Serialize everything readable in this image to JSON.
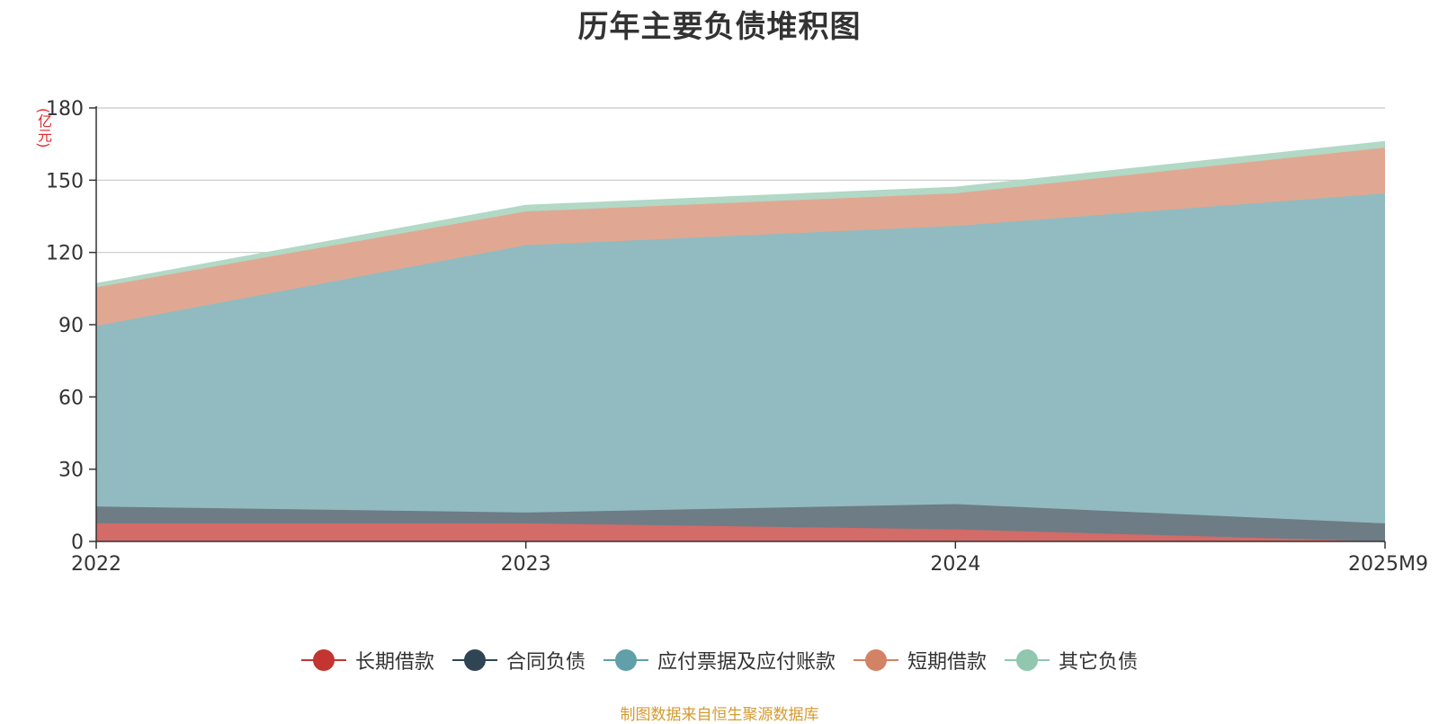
{
  "title": "历年主要负债堆积图",
  "unit": "(亿元)",
  "source": "制图数据来自恒生聚源数据库",
  "chart_data": {
    "type": "area",
    "stacked": true,
    "title": "历年主要负债堆积图",
    "ylabel": "(亿元)",
    "categories": [
      "2022",
      "2023",
      "2024",
      "2025M9"
    ],
    "ylim": [
      0,
      180
    ],
    "yticks": [
      0,
      30,
      60,
      90,
      120,
      150,
      180
    ],
    "grid": true,
    "legend_position": "bottom",
    "series": [
      {
        "name": "长期借款",
        "values": [
          7.5,
          7.5,
          5.0,
          0.0
        ],
        "color": "#c23531",
        "fill": "#d36b68"
      },
      {
        "name": "合同负债",
        "values": [
          7.0,
          4.5,
          10.5,
          7.5
        ],
        "color": "#2f4554",
        "fill": "#6e7c85"
      },
      {
        "name": "应付票据及应付账款",
        "values": [
          75.0,
          111.0,
          115.5,
          137.0
        ],
        "color": "#61a0a8",
        "fill": "#91bbc1"
      },
      {
        "name": "短期借款",
        "values": [
          16.0,
          14.0,
          13.5,
          19.0
        ],
        "color": "#d48265",
        "fill": "#e0a892"
      },
      {
        "name": "其它负债",
        "values": [
          1.5,
          2.5,
          2.5,
          2.5
        ],
        "color": "#91c7ae",
        "fill": "#b2d8c6"
      }
    ]
  }
}
